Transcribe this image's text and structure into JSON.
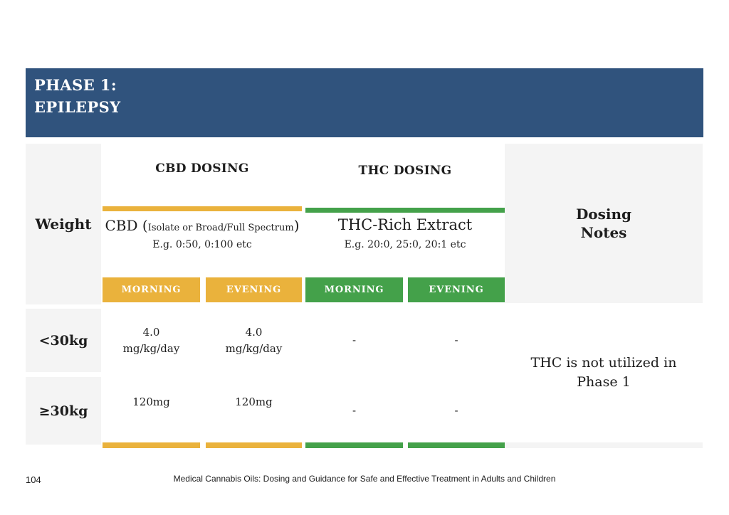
{
  "banner": {
    "line1": "PHASE 1:",
    "line2": "EPILEPSY"
  },
  "colors": {
    "banner_blue": "#30537D",
    "cbd_yellow": "#EAB23C",
    "thc_green": "#44A14A",
    "cell_gray": "#F4F4F4"
  },
  "table": {
    "weight_header": "Weight",
    "notes_header_line1": "Dosing",
    "notes_header_line2": "Notes",
    "cbd": {
      "section_label": "CBD DOSING",
      "product": "CBD",
      "paren_open": "(",
      "paren_text": "Isolate or Broad/Full Spectrum",
      "paren_close": ")",
      "example": "E.g. 0:50, 0:100 etc",
      "morning_label": "MORNING",
      "evening_label": "EVENING"
    },
    "thc": {
      "section_label": "THC DOSING",
      "product": "THC-Rich Extract",
      "example": "E.g. 20:0, 25:0, 20:1 etc",
      "morning_label": "MORNING",
      "evening_label": "EVENING"
    },
    "rows": [
      {
        "weight": "<30kg",
        "cbd_morning_value": "4.0",
        "cbd_morning_unit": "mg/kg/day",
        "cbd_evening_value": "4.0",
        "cbd_evening_unit": "mg/kg/day",
        "thc_morning": "-",
        "thc_evening": "-"
      },
      {
        "weight": "≥30kg",
        "cbd_morning_value": "120mg",
        "cbd_evening_value": "120mg",
        "thc_morning": "-",
        "thc_evening": "-"
      }
    ],
    "notes": {
      "line1": "THC is not utilized in",
      "line2": "Phase 1"
    }
  },
  "footer": {
    "page_number": "104",
    "caption": "Medical Cannabis Oils: Dosing and Guidance for Safe and Effective Treatment in Adults and Children"
  }
}
